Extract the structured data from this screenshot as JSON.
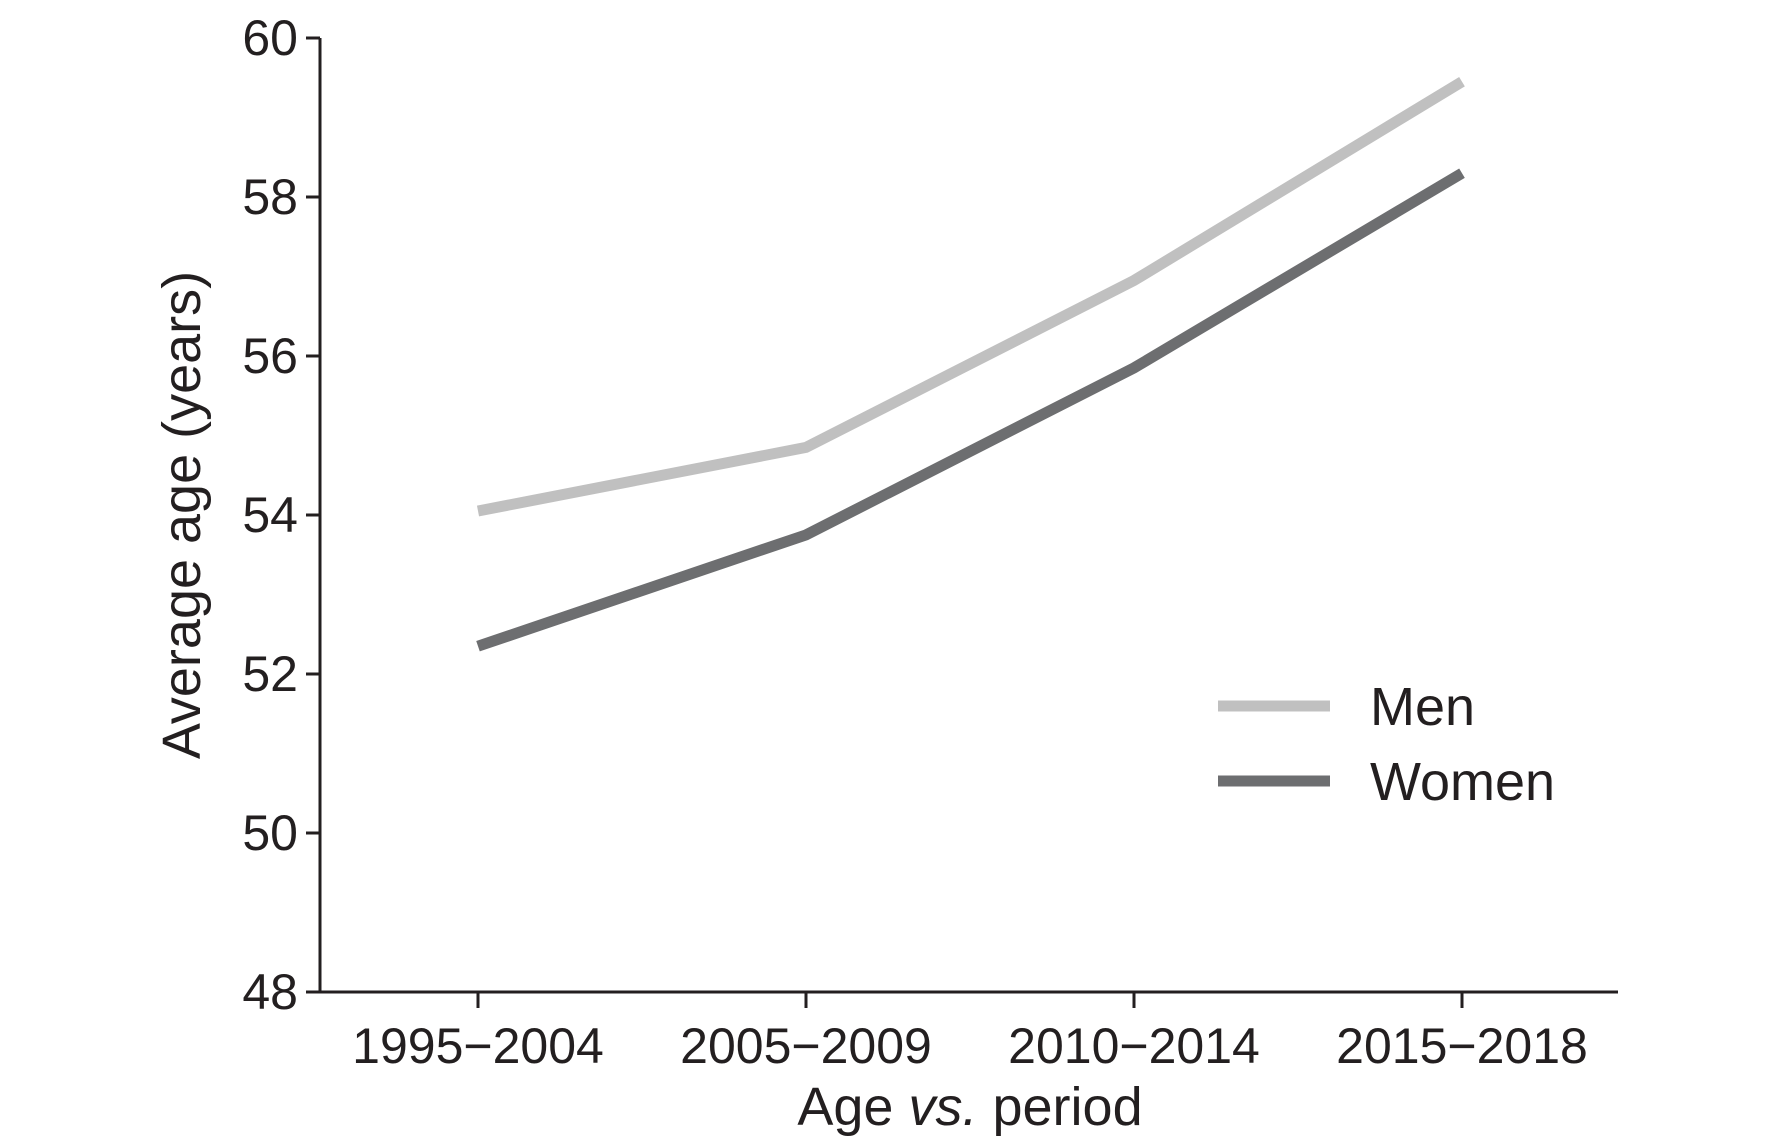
{
  "chart_data": {
    "type": "line",
    "title": "",
    "xlabel": {
      "prefix": "Age ",
      "italic": "vs.",
      "suffix": " period"
    },
    "ylabel": "Average age (years)",
    "categories": [
      "1995−2004",
      "2005−2009",
      "2010−2014",
      "2015−2018"
    ],
    "ylim": [
      48,
      60
    ],
    "yticks": [
      48,
      50,
      52,
      54,
      56,
      58,
      60
    ],
    "grid": false,
    "legend_position": "right",
    "series": [
      {
        "name": "Men",
        "color": "#c0c0c0",
        "values": [
          54.05,
          54.85,
          56.95,
          59.45
        ]
      },
      {
        "name": "Women",
        "color": "#6d6e70",
        "values": [
          52.35,
          53.75,
          55.85,
          58.3
        ]
      }
    ]
  }
}
